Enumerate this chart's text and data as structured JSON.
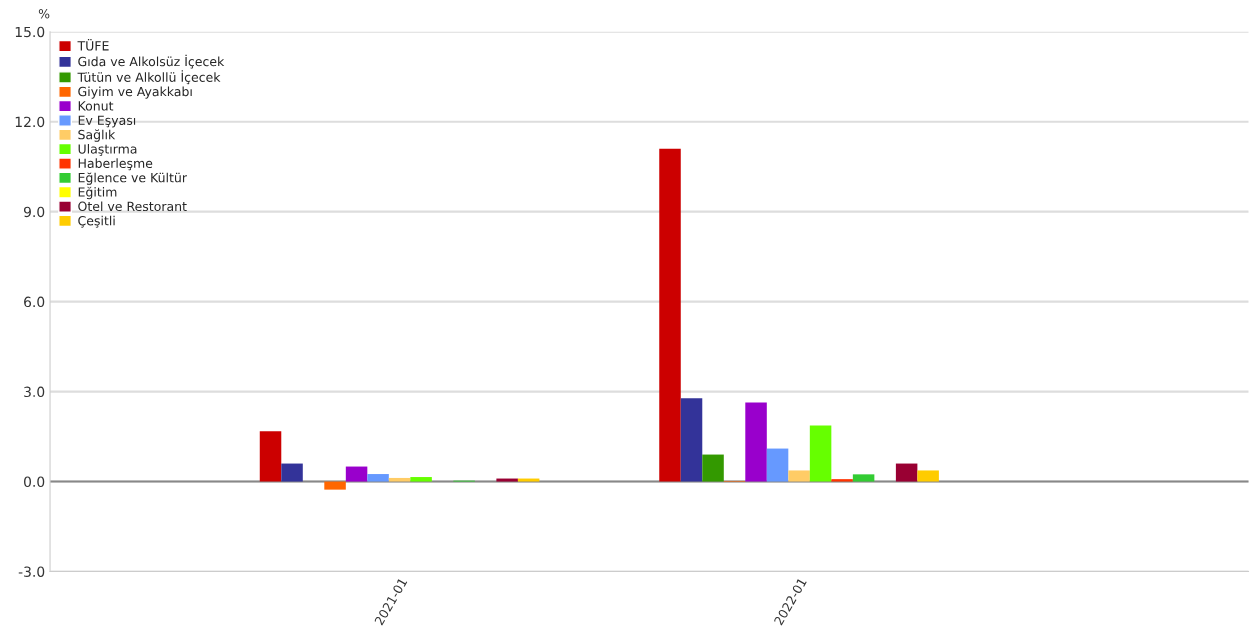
{
  "chart_data": {
    "type": "bar",
    "ylabel": "%",
    "categories": [
      "2021-01",
      "2022-01"
    ],
    "series": [
      {
        "name": "TÜFE",
        "color": "#cc0000",
        "values": [
          1.68,
          11.1
        ]
      },
      {
        "name": "Gıda ve Alkolsüz İçecek",
        "color": "#333399",
        "values": [
          0.6,
          2.78
        ]
      },
      {
        "name": "Tütün ve Alkollü İçecek",
        "color": "#339900",
        "values": [
          0.0,
          0.9
        ]
      },
      {
        "name": "Giyim ve Ayakkabı",
        "color": "#ff6600",
        "values": [
          -0.27,
          0.02
        ]
      },
      {
        "name": "Konut",
        "color": "#9900cc",
        "values": [
          0.5,
          2.64
        ]
      },
      {
        "name": "Ev Eşyası",
        "color": "#6699ff",
        "values": [
          0.25,
          1.1
        ]
      },
      {
        "name": "Sağlık",
        "color": "#ffcc66",
        "values": [
          0.12,
          0.37
        ]
      },
      {
        "name": "Ulaştırma",
        "color": "#66ff00",
        "values": [
          0.15,
          1.87
        ]
      },
      {
        "name": "Haberleşme",
        "color": "#ff3300",
        "values": [
          0.0,
          0.08
        ]
      },
      {
        "name": "Eğlence ve Kültür",
        "color": "#33cc33",
        "values": [
          0.03,
          0.24
        ]
      },
      {
        "name": "Eğitim",
        "color": "#ffff00",
        "values": [
          0.0,
          0.0
        ]
      },
      {
        "name": "Otel ve Restorant",
        "color": "#990033",
        "values": [
          0.1,
          0.6
        ]
      },
      {
        "name": "Çeşitli",
        "color": "#ffcc00",
        "values": [
          0.1,
          0.37
        ]
      }
    ],
    "ylim": [
      -3.0,
      15.0
    ],
    "yticks": [
      {
        "value": -3,
        "label": "-3.0"
      },
      {
        "value": 0,
        "label": "0.0"
      },
      {
        "value": 3,
        "label": "3.0"
      },
      {
        "value": 6,
        "label": "6.0"
      },
      {
        "value": 9,
        "label": "9.0"
      },
      {
        "value": 12,
        "label": "12.0"
      },
      {
        "value": 15,
        "label": "15.0"
      }
    ],
    "ref_lines": [
      {
        "axis": "y",
        "value": 0,
        "color": "#888888"
      }
    ],
    "grid": "y",
    "legend": "top left"
  }
}
